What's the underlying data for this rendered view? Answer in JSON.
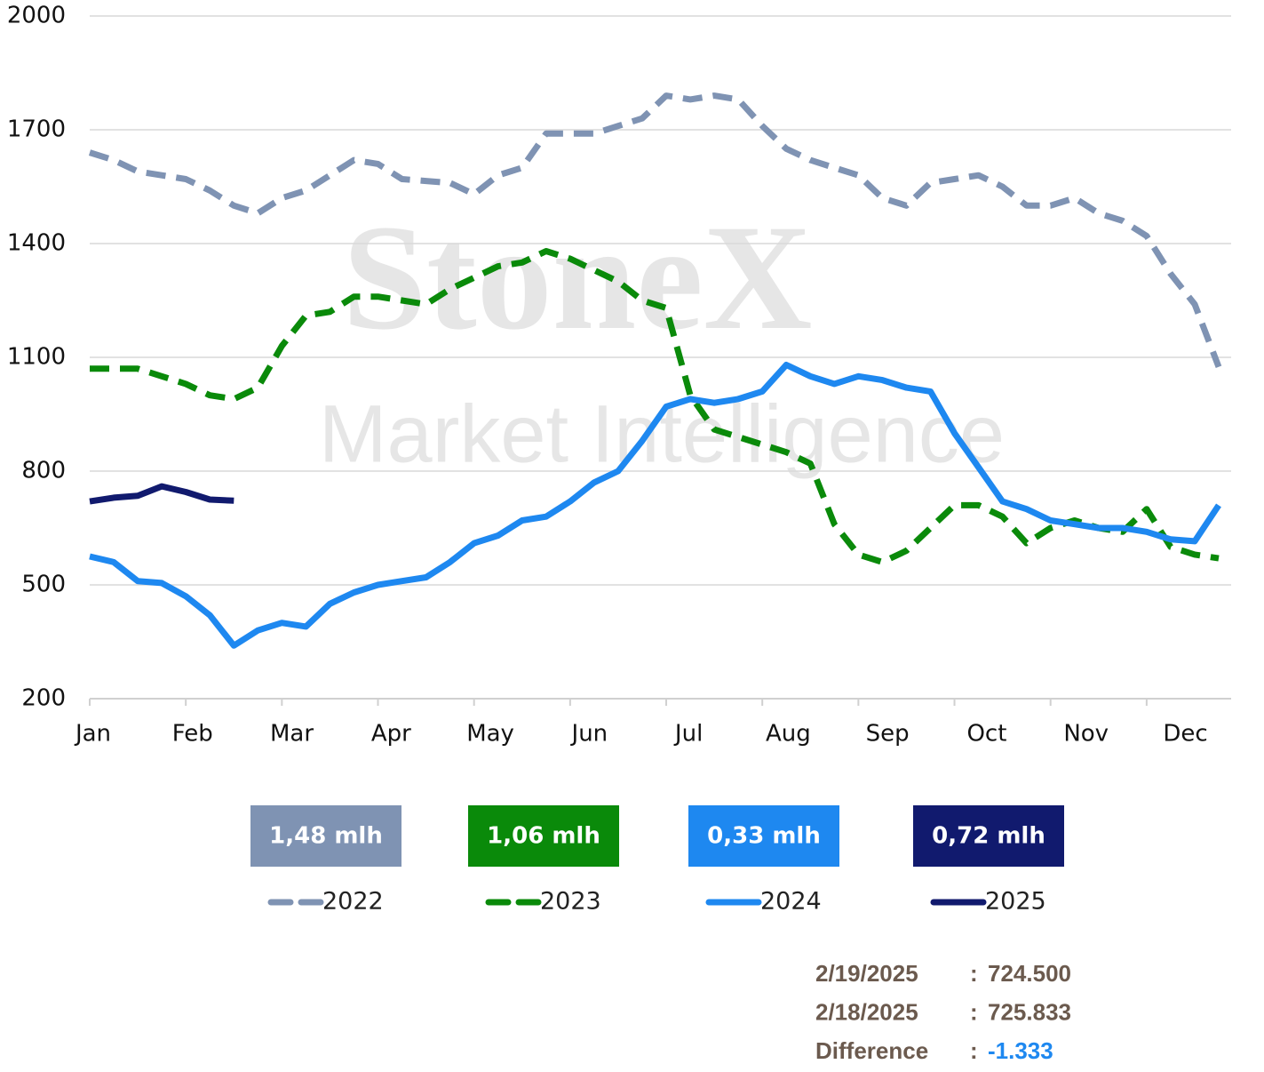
{
  "chart_data": {
    "type": "line",
    "watermark": [
      "StoneX",
      "Market Intelligence"
    ],
    "categories": [
      "Jan",
      null,
      null,
      null,
      "Feb",
      null,
      null,
      null,
      "Mar",
      null,
      null,
      null,
      "Apr",
      null,
      null,
      null,
      "May",
      null,
      null,
      null,
      "Jun",
      null,
      null,
      null,
      "Jul",
      null,
      null,
      null,
      "Aug",
      null,
      null,
      null,
      "Sep",
      null,
      null,
      null,
      "Oct",
      null,
      null,
      null,
      "Nov",
      null,
      null,
      null,
      "Dec",
      null,
      null,
      null
    ],
    "ylim": [
      200,
      2000
    ],
    "yticks": [
      200,
      500,
      800,
      1100,
      1400,
      1700,
      2000
    ],
    "grid": true,
    "series": [
      {
        "name": "2022",
        "color": "#7f93b3",
        "dashed": true,
        "badge": "1,48 mlh",
        "values": [
          1640,
          1620,
          1590,
          1580,
          1570,
          1540,
          1500,
          1480,
          1520,
          1540,
          1580,
          1620,
          1610,
          1570,
          1565,
          1560,
          1530,
          1580,
          1600,
          1690,
          1690,
          1690,
          1710,
          1730,
          1790,
          1780,
          1790,
          1780,
          1710,
          1650,
          1620,
          1600,
          1580,
          1520,
          1500,
          1560,
          1570,
          1580,
          1550,
          1500,
          1500,
          1520,
          1480,
          1460,
          1420,
          1320,
          1240,
          1075
        ]
      },
      {
        "name": "2023",
        "color": "#0a8a0a",
        "dashed": true,
        "badge": "1,06 mlh",
        "values": [
          1070,
          1070,
          1070,
          1050,
          1030,
          1000,
          990,
          1020,
          1130,
          1210,
          1220,
          1260,
          1260,
          1250,
          1240,
          1280,
          1310,
          1340,
          1350,
          1380,
          1360,
          1330,
          1300,
          1250,
          1230,
          1000,
          910,
          890,
          870,
          850,
          820,
          660,
          580,
          560,
          590,
          650,
          710,
          710,
          680,
          610,
          650,
          670,
          650,
          640,
          700,
          600,
          580,
          570
        ]
      },
      {
        "name": "2024",
        "color": "#1e88f0",
        "dashed": false,
        "badge": "0,33 mlh",
        "values": [
          575,
          560,
          510,
          505,
          470,
          420,
          340,
          380,
          400,
          390,
          450,
          480,
          500,
          510,
          520,
          560,
          610,
          630,
          670,
          680,
          720,
          770,
          800,
          880,
          970,
          990,
          980,
          990,
          1010,
          1080,
          1050,
          1030,
          1050,
          1040,
          1020,
          1010,
          900,
          810,
          720,
          700,
          670,
          660,
          650,
          650,
          640,
          620,
          615,
          710
        ]
      },
      {
        "name": "2025",
        "color": "#111a6e",
        "dashed": false,
        "badge": "0,72 mlh",
        "values": [
          720,
          730,
          735,
          760,
          745,
          725,
          722,
          null,
          null,
          null,
          null,
          null,
          null,
          null,
          null,
          null,
          null,
          null,
          null,
          null,
          null,
          null,
          null,
          null,
          null,
          null,
          null,
          null,
          null,
          null,
          null,
          null,
          null,
          null,
          null,
          null,
          null,
          null,
          null,
          null,
          null,
          null,
          null,
          null,
          null,
          null,
          null,
          null
        ]
      }
    ],
    "stats": [
      {
        "label": "2/19/2025",
        "value": "724.500"
      },
      {
        "label": "2/18/2025",
        "value": "725.833"
      },
      {
        "label": "Difference",
        "value": "-1.333",
        "color": "#1e88f0"
      }
    ]
  }
}
